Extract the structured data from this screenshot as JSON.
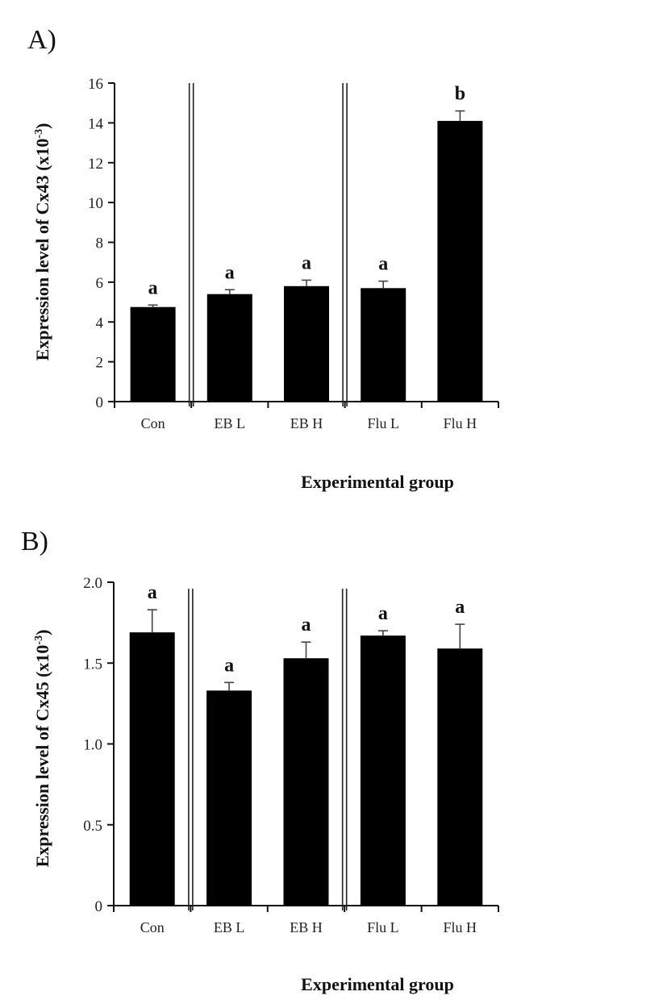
{
  "chart_data": [
    {
      "type": "bar",
      "panel_label": "A)",
      "title": "",
      "xlabel": "Experimental group",
      "ylabel": "Expression level of Cx43 (x10",
      "ylabel_exponent": "-3",
      "ylabel_suffix": ")",
      "categories": [
        "Con",
        "EB L",
        "EB H",
        "Flu L",
        "Flu H"
      ],
      "values": [
        4.75,
        5.4,
        5.8,
        5.7,
        14.1
      ],
      "errors": [
        0.1,
        0.22,
        0.3,
        0.35,
        0.5
      ],
      "significance": [
        "a",
        "a",
        "a",
        "a",
        "b"
      ],
      "ylim": [
        0,
        16
      ],
      "yticks": [
        0,
        2,
        4,
        6,
        8,
        10,
        12,
        14,
        16
      ],
      "ytick_labels": [
        "0",
        "2",
        "4",
        "6",
        "8",
        "10",
        "12",
        "14",
        "16"
      ],
      "group_separators_after": [
        0,
        2
      ],
      "bar_color": "#000000",
      "grid": false,
      "legend": "none"
    },
    {
      "type": "bar",
      "panel_label": "B)",
      "title": "",
      "xlabel": "Experimental group",
      "ylabel": "Expression level of Cx45 (x10",
      "ylabel_exponent": "-3",
      "ylabel_suffix": ")",
      "categories": [
        "Con",
        "EB L",
        "EB H",
        "Flu L",
        "Flu H"
      ],
      "values": [
        1.69,
        1.33,
        1.53,
        1.67,
        1.59
      ],
      "errors": [
        0.14,
        0.05,
        0.1,
        0.03,
        0.15
      ],
      "significance": [
        "a",
        "a",
        "a",
        "a",
        "a"
      ],
      "ylim": [
        0,
        2.0
      ],
      "yticks": [
        0,
        0.5,
        1.0,
        1.5,
        2.0
      ],
      "ytick_labels": [
        "0",
        "0.5",
        "1.0",
        "1.5",
        "2.0"
      ],
      "group_separators_after": [
        0,
        2
      ],
      "bar_color": "#000000",
      "grid": false,
      "legend": "none"
    }
  ]
}
